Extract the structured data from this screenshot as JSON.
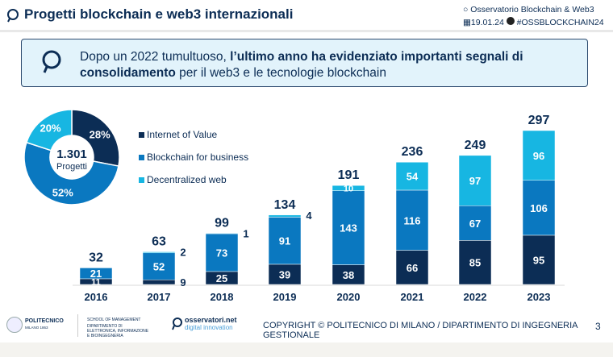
{
  "header": {
    "title": "Progetti blockchain e web3 internazionali",
    "observatory": "Osservatorio Blockchain & Web3",
    "date": "19.01.24",
    "hashtag": "#OSSBLOCKCHAIN24"
  },
  "banner": {
    "text_normal_1": "Dopo un 2022 tumultuoso, ",
    "text_bold": "l’ultimo anno ha evidenziato importanti segnali di consolidamento",
    "text_normal_2": " per il web3 e le tecnologie blockchain"
  },
  "colors": {
    "internet_of_value": "#0c2d55",
    "blockchain_for_business": "#0a78c0",
    "decentralized_web": "#17b6e2"
  },
  "chart_data": [
    {
      "type": "pie",
      "donut": true,
      "center_value": "1.301",
      "center_label": "Progetti",
      "slices": [
        {
          "name": "Internet of Value",
          "value": 28,
          "label": "28%"
        },
        {
          "name": "Blockchain for business",
          "value": 52,
          "label": "52%"
        },
        {
          "name": "Decentralized web",
          "value": 20,
          "label": "20%"
        }
      ]
    },
    {
      "type": "bar",
      "stacked": true,
      "categories": [
        "2016",
        "2017",
        "2018",
        "2019",
        "2020",
        "2021",
        "2022",
        "2023"
      ],
      "series": [
        {
          "name": "Internet of Value",
          "values": [
            11,
            9,
            25,
            39,
            38,
            66,
            85,
            95
          ]
        },
        {
          "name": "Blockchain for business",
          "values": [
            21,
            52,
            73,
            91,
            143,
            116,
            67,
            106
          ]
        },
        {
          "name": "Decentralized web",
          "values": [
            0,
            2,
            1,
            4,
            10,
            54,
            97,
            96
          ]
        }
      ],
      "totals": [
        32,
        63,
        99,
        134,
        191,
        236,
        249,
        297
      ],
      "legend": [
        "Internet of Value",
        "Blockchain for business",
        "Decentralized web"
      ]
    }
  ],
  "footer": {
    "politecnico": "POLITECNICO",
    "milano": "MILANO 1863",
    "school": "SCHOOL OF MANAGEMENT",
    "dept": "DIPARTIMENTO DI ELETTRONICA, INFORMAZIONE E BIOINGEGNERIA",
    "osservatori": "osservatori.net",
    "digital": "digital innovation",
    "copyright": "COPYRIGHT © POLITECNICO DI MILANO / DIPARTIMENTO DI INGEGNERIA GESTIONALE",
    "page": "3"
  }
}
